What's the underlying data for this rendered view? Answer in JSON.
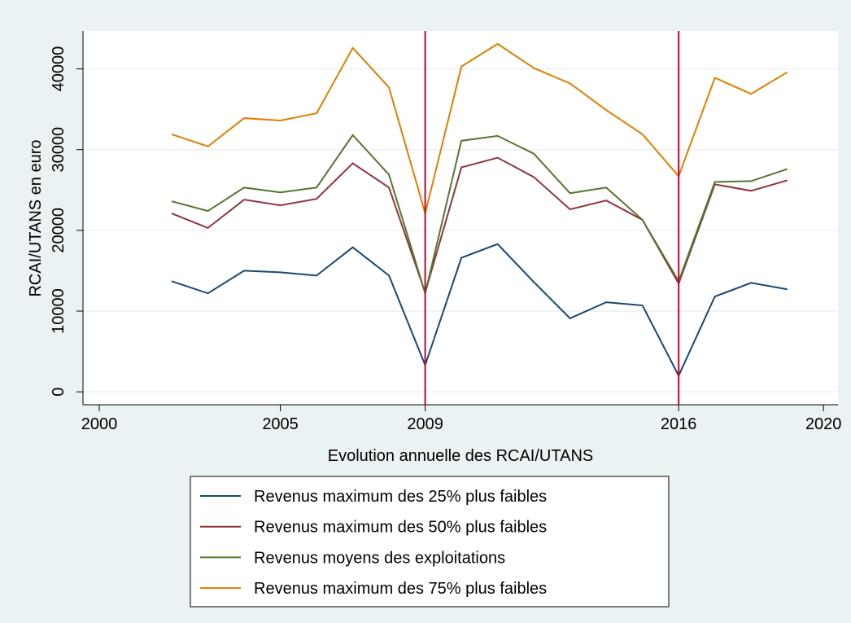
{
  "chart_data": {
    "type": "line",
    "xlabel": "Evolution annuelle des RCAI/UTANS",
    "ylabel": "RCAI/UTANS en euro",
    "x": [
      2002,
      2003,
      2004,
      2005,
      2006,
      2007,
      2008,
      2009,
      2010,
      2011,
      2012,
      2013,
      2014,
      2015,
      2016,
      2017,
      2018,
      2019
    ],
    "series": [
      {
        "name": "Revenus maximum des 25% plus faibles",
        "color": "#1a476f",
        "values": [
          13700,
          12200,
          15000,
          14800,
          14400,
          17900,
          14400,
          3300,
          16600,
          18300,
          13600,
          9100,
          11100,
          10700,
          2000,
          11800,
          13500,
          12700
        ]
      },
      {
        "name": "Revenus maximum des 50% plus faibles",
        "color": "#90353b",
        "values": [
          22100,
          20300,
          23800,
          23100,
          23900,
          28300,
          25300,
          12300,
          27800,
          29000,
          26600,
          22600,
          23700,
          21300,
          13400,
          25700,
          24900,
          26200
        ]
      },
      {
        "name": "Revenus moyens des exploitations",
        "color": "#55752f",
        "values": [
          23600,
          22400,
          25300,
          24700,
          25300,
          31800,
          26900,
          12200,
          31100,
          31700,
          29500,
          24600,
          25300,
          21300,
          13700,
          26000,
          26100,
          27600
        ]
      },
      {
        "name": "Revenus maximum des 75% plus faibles",
        "color": "#e37e00",
        "values": [
          31900,
          30400,
          33900,
          33600,
          34500,
          42600,
          37700,
          22100,
          40300,
          43100,
          40100,
          38200,
          34900,
          31900,
          26700,
          38900,
          36900,
          39600
        ]
      }
    ],
    "xlim": [
      1999.55,
      2020.4
    ],
    "xticks": [
      2000,
      2005,
      2009,
      2016,
      2020
    ],
    "ylim": [
      -1600,
      44700
    ],
    "yticks": [
      0,
      10000,
      20000,
      30000,
      40000
    ],
    "vlines": [
      2009,
      2016
    ],
    "vline_color": "#c10534",
    "grid": true,
    "legend": "bottom"
  }
}
